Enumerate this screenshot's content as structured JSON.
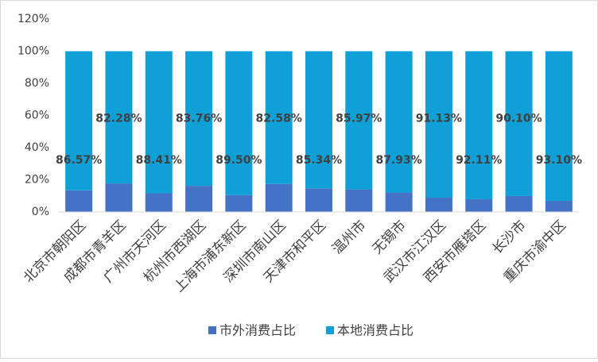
{
  "chart_data": {
    "type": "stacked-bar",
    "categories": [
      "北京市朝阳区",
      "成都市青羊区",
      "广州市天河区",
      "杭州市西湖区",
      "上海市浦东新区",
      "深圳市南山区",
      "天津市和平区",
      "温州市",
      "无锡市",
      "武汉市江汉区",
      "西安市雁塔区",
      "长沙市",
      "重庆市渝中区"
    ],
    "series": [
      {
        "name": "市外消费占比",
        "color": "#4472c4",
        "values": [
          13.43,
          17.72,
          11.59,
          16.24,
          10.5,
          17.42,
          14.66,
          14.03,
          12.07,
          8.87,
          7.89,
          9.9,
          6.9
        ]
      },
      {
        "name": "本地消费占比",
        "color": "#0fa0d8",
        "values": [
          86.57,
          82.28,
          88.41,
          83.76,
          89.5,
          82.58,
          85.34,
          85.97,
          87.93,
          91.13,
          92.11,
          90.1,
          93.1
        ],
        "value_labels": [
          "86.57%",
          "82.28%",
          "88.41%",
          "83.76%",
          "89.50%",
          "82.58%",
          "85.34%",
          "85.97%",
          "87.93%",
          "91.13%",
          "92.11%",
          "90.10%",
          "93.10%"
        ]
      }
    ],
    "ylim": [
      0,
      120
    ],
    "yticks": [
      {
        "value": 0,
        "label": "0%"
      },
      {
        "value": 20,
        "label": "20%"
      },
      {
        "value": 40,
        "label": "40%"
      },
      {
        "value": 60,
        "label": "60%"
      },
      {
        "value": 80,
        "label": "80%"
      },
      {
        "value": 100,
        "label": "100%"
      },
      {
        "value": 120,
        "label": "120%"
      }
    ],
    "grid": false,
    "legend": "bottom"
  }
}
